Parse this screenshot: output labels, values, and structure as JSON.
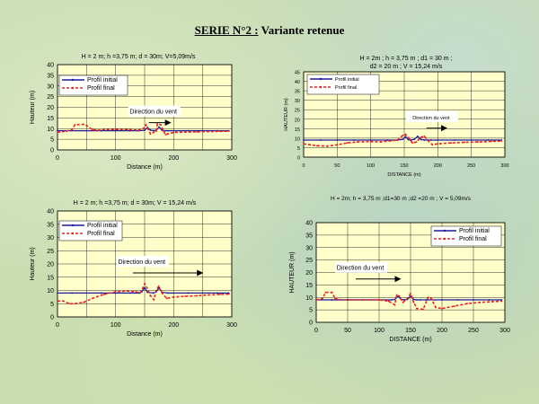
{
  "page": {
    "title_main": "SERIE N°2 :",
    "title_rest": "Variante retenue"
  },
  "chart_data": [
    {
      "type": "line",
      "title": "H = 2 m; h =3,75 m; d = 30m; V=5,09m/s",
      "xlabel": "Distance (m)",
      "ylabel": "Hauteur (m)",
      "xlim": [
        0,
        300
      ],
      "ylim": [
        0,
        40
      ],
      "xticks": [
        0,
        100,
        200,
        300
      ],
      "yticks": [
        0,
        5,
        10,
        15,
        20,
        25,
        30,
        35,
        40
      ],
      "grid": true,
      "legend_position": "top-left",
      "annotation": {
        "text": "Direction du vent",
        "x": 165,
        "y": 17,
        "arrow_to_x": 185
      },
      "series": [
        {
          "name": "Profil initial",
          "color": "#1a1aa0",
          "style": "solid",
          "x": [
            0,
            25,
            50,
            75,
            100,
            125,
            140,
            150,
            155,
            160,
            165,
            170,
            175,
            180,
            185,
            190,
            200,
            225,
            250,
            275,
            295
          ],
          "values": [
            9,
            9,
            9,
            9,
            9,
            9,
            9,
            9.2,
            10.5,
            9.3,
            9,
            9.3,
            10.8,
            9.2,
            9,
            9,
            9,
            9,
            9,
            9,
            9
          ]
        },
        {
          "name": "Profil final",
          "color": "#e82020",
          "style": "dashed",
          "x": [
            0,
            15,
            25,
            30,
            45,
            50,
            60,
            70,
            80,
            100,
            120,
            140,
            148,
            152,
            156,
            160,
            170,
            172,
            178,
            182,
            186,
            190,
            200,
            220,
            240,
            260,
            280,
            295
          ],
          "values": [
            8.3,
            8.8,
            9.5,
            11.8,
            12,
            11.5,
            9.5,
            9.2,
            9.5,
            9.6,
            9.5,
            9.3,
            10,
            11.8,
            9.8,
            7.5,
            8.8,
            12.2,
            11.8,
            9,
            7.2,
            7.5,
            8.2,
            8.4,
            8.5,
            8.6,
            8.7,
            8.8
          ]
        }
      ]
    },
    {
      "type": "line",
      "title": "H = 2m ; h = 3,75 m  ;  d1 = 30 m  ;  d2 = 20 m  ;  V = 15,24 m/s",
      "xlabel": "DISTANCE (m)",
      "ylabel": "HAUTEUR (m)",
      "xlim": [
        0,
        300
      ],
      "ylim": [
        0,
        45
      ],
      "xticks": [
        0,
        50,
        100,
        150,
        200,
        250,
        300
      ],
      "yticks": [
        0,
        5,
        10,
        15,
        20,
        25,
        30,
        35,
        40,
        45
      ],
      "grid": true,
      "legend_position": "top-left",
      "annotation": {
        "text": "Direction du vent",
        "x": 190,
        "y": 20,
        "arrow_to_x": 205
      },
      "series": [
        {
          "name": "Profil initial",
          "color": "#1a1aa0",
          "style": "solid",
          "x": [
            0,
            25,
            50,
            75,
            100,
            125,
            140,
            148,
            152,
            156,
            160,
            165,
            170,
            175,
            180,
            185,
            190,
            200,
            225,
            250,
            275,
            295
          ],
          "values": [
            9,
            9,
            9,
            9,
            9,
            9,
            9,
            9.4,
            10.8,
            9.2,
            9,
            9.4,
            11,
            9.3,
            9,
            9,
            9,
            9,
            9,
            9,
            9,
            9
          ]
        },
        {
          "name": "Profil final",
          "color": "#e82020",
          "style": "dashed",
          "x": [
            0,
            10,
            20,
            35,
            50,
            65,
            80,
            100,
            115,
            130,
            140,
            148,
            152,
            158,
            162,
            168,
            175,
            180,
            186,
            192,
            200,
            220,
            240,
            260,
            280,
            295
          ],
          "values": [
            7,
            6.5,
            6,
            5.8,
            6.5,
            7.5,
            8,
            8.2,
            8,
            8.6,
            9,
            11.5,
            12,
            9.5,
            7.5,
            8,
            10.5,
            11,
            8.5,
            6.5,
            7,
            7.5,
            7.8,
            8,
            8.3,
            8.5
          ]
        }
      ]
    },
    {
      "type": "line",
      "title": "H = 2 m; h =3,75 m; d = 30m; V = 15,24 m/s",
      "xlabel": "Distance (m)",
      "ylabel": "Hauteur (m)",
      "xlim": [
        0,
        300
      ],
      "ylim": [
        0,
        40
      ],
      "xticks": [
        0,
        100,
        200,
        300
      ],
      "yticks": [
        0,
        5,
        10,
        15,
        20,
        25,
        30,
        35,
        40
      ],
      "grid": true,
      "legend_position": "top-left",
      "annotation": {
        "text": "Direction du vent",
        "x": 145,
        "y": 20,
        "arrow_to_x": 240
      },
      "series": [
        {
          "name": "Profil initial",
          "color": "#1a1aa0",
          "style": "solid",
          "x": [
            0,
            25,
            50,
            75,
            100,
            125,
            140,
            145,
            150,
            155,
            165,
            170,
            175,
            180,
            190,
            200,
            225,
            250,
            275,
            295
          ],
          "values": [
            9,
            9,
            9,
            9,
            9,
            9,
            9,
            9.5,
            11,
            9.3,
            9,
            9.5,
            11,
            9.3,
            9,
            9,
            9,
            9,
            9,
            9
          ]
        },
        {
          "name": "Profil final",
          "color": "#e82020",
          "style": "dashed",
          "x": [
            0,
            10,
            20,
            30,
            45,
            60,
            80,
            100,
            120,
            135,
            142,
            147,
            150,
            154,
            160,
            166,
            170,
            174,
            180,
            188,
            200,
            220,
            240,
            260,
            280,
            295
          ],
          "values": [
            6,
            6,
            5,
            5,
            5.5,
            7,
            8.5,
            9.5,
            9.8,
            9.5,
            9,
            11,
            12.5,
            11,
            8,
            6.5,
            10,
            11.5,
            9,
            7,
            7.5,
            7.8,
            8,
            8.3,
            8.5,
            8.6
          ]
        }
      ]
    },
    {
      "type": "line",
      "title": "H = 2m; h = 3,75 m ;d1=30 m ;d2 =20 m ; V = 5,09m/s",
      "xlabel": "DISTANCE (m)",
      "ylabel": "HAUTEUR (m)",
      "xlim": [
        0,
        300
      ],
      "ylim": [
        0,
        40
      ],
      "xticks": [
        0,
        50,
        100,
        150,
        200,
        250,
        300
      ],
      "yticks": [
        0,
        5,
        10,
        15,
        20,
        25,
        30,
        35,
        40
      ],
      "grid": true,
      "legend_position": "top-right",
      "annotation": {
        "text": "Direction du vent",
        "x": 70,
        "y": 21,
        "arrow_to_x": 125
      },
      "series": [
        {
          "name": "Profil initial",
          "color": "#1a1aa0",
          "style": "solid",
          "x": [
            0,
            25,
            50,
            75,
            100,
            120,
            125,
            130,
            135,
            140,
            145,
            150,
            155,
            160,
            165,
            175,
            200,
            225,
            250,
            275,
            295
          ],
          "values": [
            9,
            9,
            9,
            9,
            9,
            9,
            9.2,
            10.5,
            9.2,
            9,
            9.2,
            10.5,
            9.2,
            9,
            9,
            9,
            9,
            9,
            9,
            9,
            9
          ]
        },
        {
          "name": "Profil final",
          "color": "#e82020",
          "style": "dashed",
          "x": [
            0,
            10,
            15,
            25,
            30,
            40,
            55,
            80,
            100,
            115,
            125,
            128,
            132,
            138,
            145,
            150,
            155,
            160,
            170,
            178,
            183,
            190,
            200,
            220,
            240,
            260,
            280,
            295
          ],
          "values": [
            9,
            9.5,
            12,
            12,
            9.5,
            9,
            9,
            9,
            9,
            8.5,
            7,
            11,
            10.5,
            8,
            9.5,
            11.5,
            8,
            5.5,
            5.2,
            10,
            9.5,
            6,
            5.5,
            6.5,
            7.5,
            8,
            8.3,
            8.5
          ]
        }
      ]
    }
  ]
}
